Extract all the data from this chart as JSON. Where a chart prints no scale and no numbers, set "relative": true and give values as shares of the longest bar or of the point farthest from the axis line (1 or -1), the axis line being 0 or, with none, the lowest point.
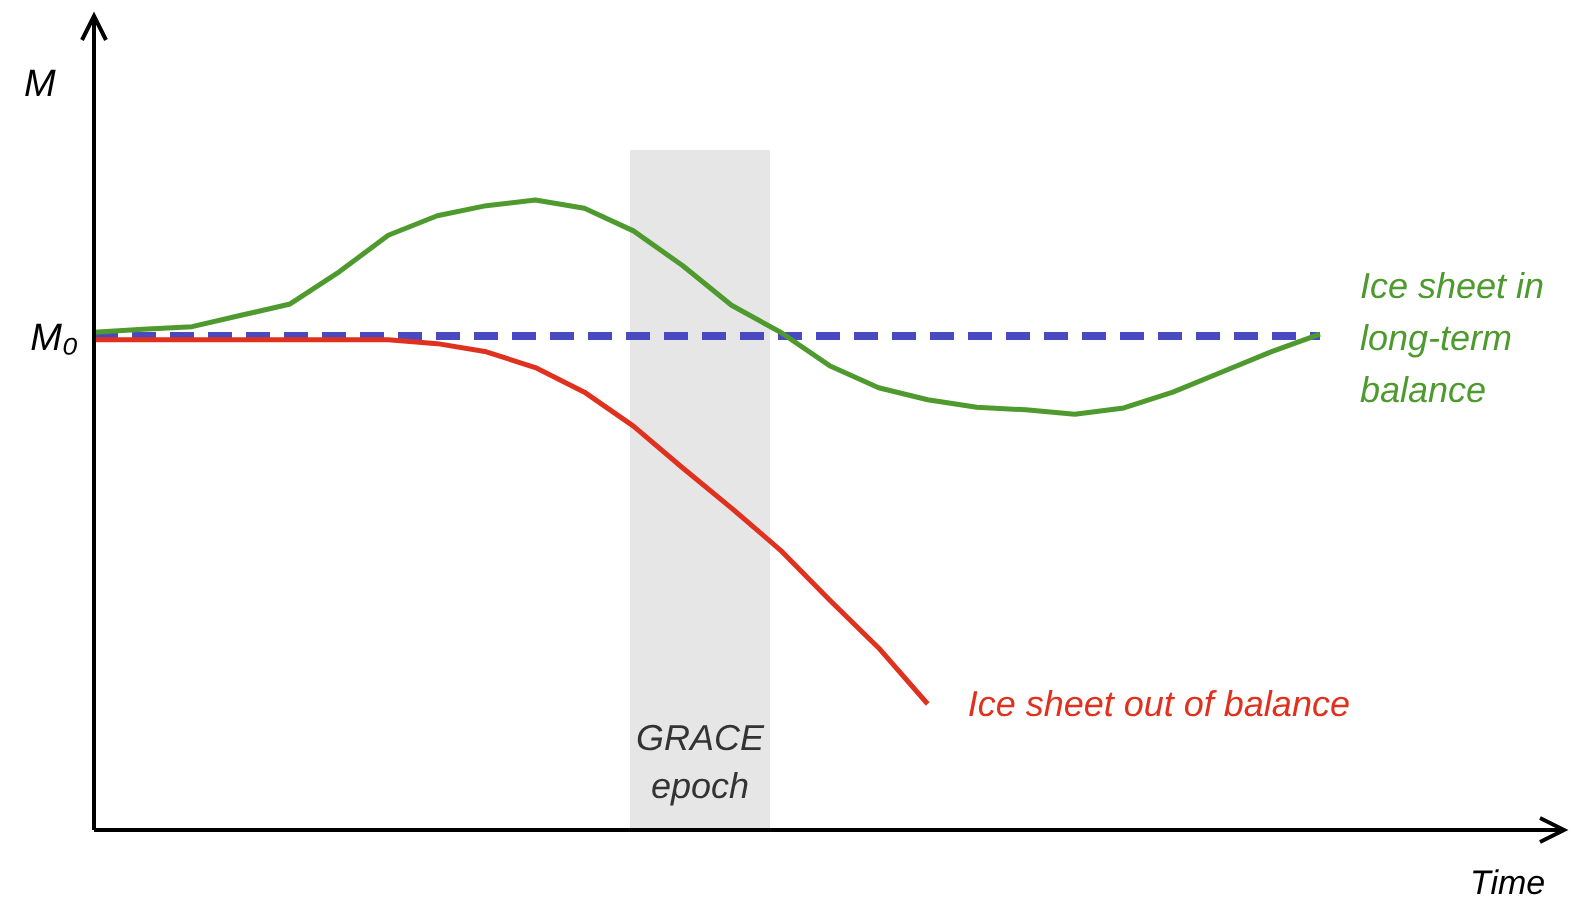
{
  "chart_data": {
    "type": "line",
    "relative": true,
    "xlabel": "Time",
    "ylabel": "M",
    "categories": [
      null,
      null,
      null,
      null,
      null,
      null,
      null,
      null,
      null,
      null,
      null,
      null,
      null,
      null,
      null,
      null,
      null,
      null,
      null,
      null,
      null,
      null,
      null,
      null,
      null,
      null
    ],
    "series": [
      {
        "name": "Ice sheet in long-term balance",
        "color": "#4e9a2e",
        "values": [
          0.79,
          0.795,
          0.799,
          0.817,
          0.835,
          0.886,
          0.944,
          0.975,
          0.991,
          1,
          0.987,
          0.951,
          0.896,
          0.833,
          0.79,
          0.737,
          0.702,
          0.683,
          0.671,
          0.667,
          0.66,
          0.67,
          0.695,
          0.727,
          0.759,
          0.787
        ]
      },
      {
        "name": "Ice sheet out of balance",
        "color": "#e0301e",
        "values": [
          0.778,
          0.778,
          0.778,
          0.778,
          0.778,
          0.778,
          0.778,
          0.772,
          0.759,
          0.734,
          0.695,
          0.641,
          0.575,
          0.511,
          0.444,
          0.365,
          0.289,
          0.2,
          null,
          null,
          null,
          null,
          null,
          null,
          null,
          null
        ]
      }
    ],
    "ref_lines": [
      {
        "axis": "y",
        "value": 0.784,
        "label": "M₀",
        "color": "#4a4ac0",
        "line_style": "dashed"
      }
    ],
    "annotations": [
      "GRACE epoch"
    ]
  }
}
